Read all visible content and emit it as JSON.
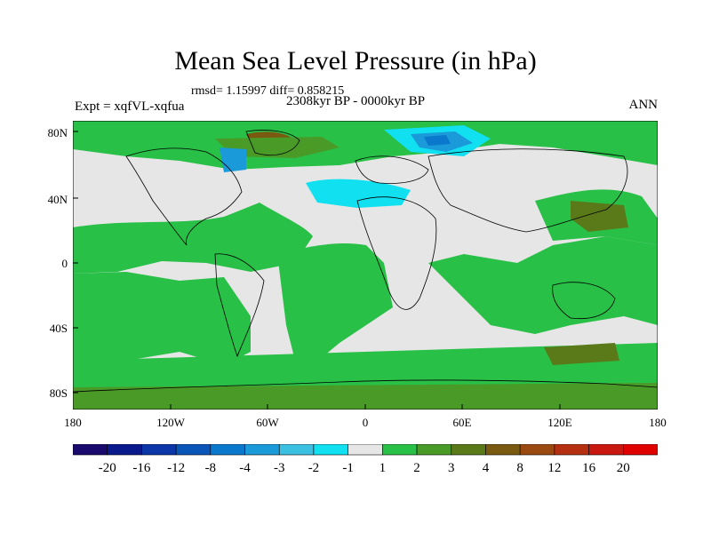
{
  "title": "Mean Sea Level Pressure (in hPa)",
  "stats_line": "rmsd= 1.15997 diff= 0.858215",
  "period": "2308kyr BP - 0000kyr BP",
  "experiment": "Expt = xqfVL-xqfua",
  "season": "ANN",
  "lat_labels": [
    "80N",
    "40N",
    "0",
    "40S",
    "80S"
  ],
  "lon_labels": [
    "180",
    "120W",
    "60W",
    "0",
    "60E",
    "120E",
    "180"
  ],
  "colorbar": {
    "labels": [
      "-20",
      "-16",
      "-12",
      "-8",
      "-4",
      "-3",
      "-2",
      "-1",
      "1",
      "2",
      "3",
      "4",
      "8",
      "12",
      "16",
      "20"
    ],
    "colors": [
      "#1a0a6e",
      "#0a1a8c",
      "#0a36a8",
      "#0a55b8",
      "#0a78cc",
      "#1a9ad8",
      "#3cc0e2",
      "#10e0f0",
      "#e6e6e6",
      "#28c047",
      "#4a9a28",
      "#5a7a1a",
      "#7a5a10",
      "#9a4a10",
      "#b43010",
      "#c81810",
      "#e00000"
    ]
  },
  "palette": {
    "land_outline": "#000000",
    "zero_band": "#e6e6e6",
    "pos_1_2": "#28c047",
    "pos_2_3": "#4a9a28",
    "pos_3_4": "#5a7a1a",
    "pos_4_8": "#7a5a10",
    "neg_1_2": "#10e0f0",
    "neg_2_3": "#3cc0e2",
    "neg_3_4": "#1a9ad8",
    "neg_4_8": "#0a78cc"
  }
}
